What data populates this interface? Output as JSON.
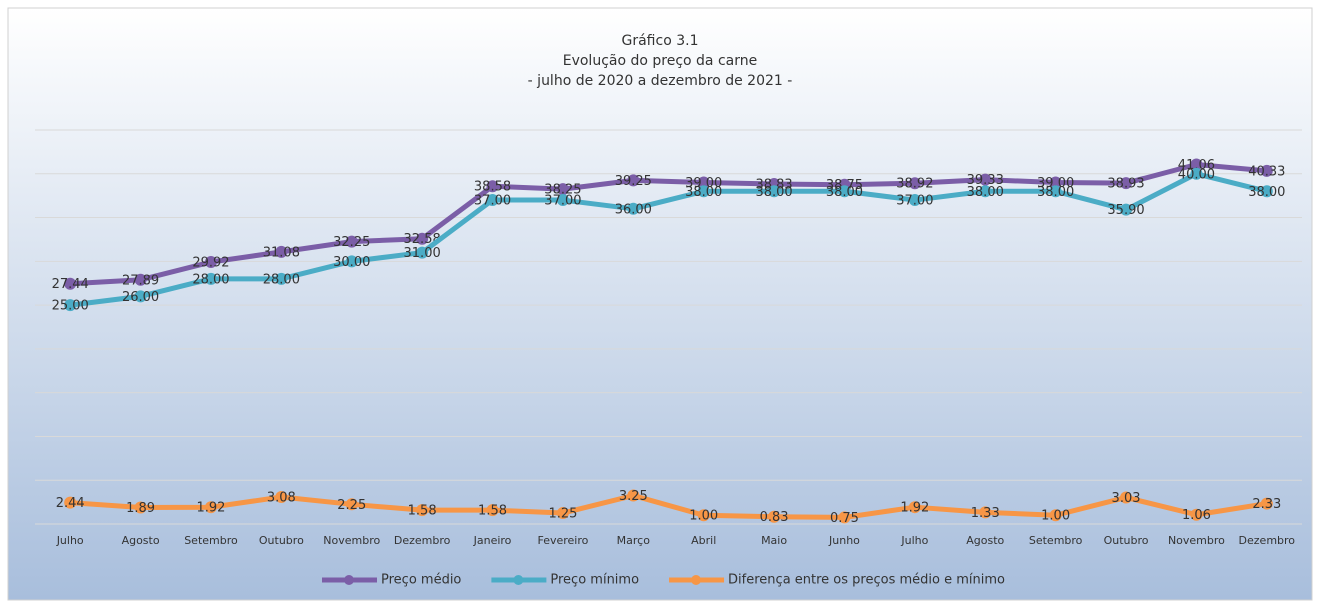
{
  "chart_data": {
    "type": "line",
    "title": [
      "Gráfico 3.1",
      "Evolução do preço da carne",
      "- julho de 2020 a dezembro de 2021 -"
    ],
    "categories": [
      "Julho",
      "Agosto",
      "Setembro",
      "Outubro",
      "Novembro",
      "Dezembro",
      "Janeiro",
      "Fevereiro",
      "Março",
      "Abril",
      "Maio",
      "Junho",
      "Julho",
      "Agosto",
      "Setembro",
      "Outubro",
      "Novembro",
      "Dezembro"
    ],
    "series": [
      {
        "name": "Preço médio",
        "color": "#7b5ea7",
        "values": [
          27.44,
          27.89,
          29.92,
          31.08,
          32.25,
          32.58,
          38.58,
          38.25,
          39.25,
          39.0,
          38.83,
          38.75,
          38.92,
          39.33,
          39.0,
          38.93,
          41.06,
          40.33
        ],
        "value_labels": [
          "27.44",
          "27.89",
          "29.92",
          "31.08",
          "32.25",
          "32.58",
          "38.58",
          "38.25",
          "39.25",
          "39.00",
          "38.83",
          "38.75",
          "38.92",
          "39.33",
          "39.00",
          "38.93",
          "41.06",
          "40.33"
        ]
      },
      {
        "name": "Preço mínimo",
        "color": "#4bacc6",
        "values": [
          25,
          26,
          28,
          28,
          30,
          31,
          37,
          37,
          36,
          38,
          38,
          38,
          37,
          38,
          38,
          35.9,
          40,
          38
        ],
        "value_labels": [
          "25.00",
          "26.00",
          "28.00",
          "28.00",
          "30.00",
          "31.00",
          "37.00",
          "37.00",
          "36.00",
          "38.00",
          "38.00",
          "38.00",
          "37.00",
          "38.00",
          "38.00",
          "35.90",
          "40.00",
          "38.00"
        ]
      },
      {
        "name": "Diferença entre os preços médio e mínimo",
        "color": "#f79646",
        "values": [
          2.44,
          1.89,
          1.92,
          3.08,
          2.25,
          1.58,
          1.58,
          1.25,
          3.25,
          1.0,
          0.83,
          0.75,
          1.92,
          1.33,
          1.0,
          3.03,
          1.06,
          2.33
        ],
        "value_labels": [
          "2.44",
          "1.89",
          "1.92",
          "3.08",
          "2.25",
          "1.58",
          "1.58",
          "1.25",
          "3.25",
          "1.00",
          "0.83",
          "0.75",
          "1.92",
          "1.33",
          "1.00",
          "3.03",
          "1.06",
          "2.33"
        ]
      }
    ],
    "ylim": [
      0,
      45
    ],
    "yticks": [
      0,
      5,
      10,
      15,
      20,
      25,
      30,
      35,
      40,
      45
    ],
    "grid": true
  }
}
